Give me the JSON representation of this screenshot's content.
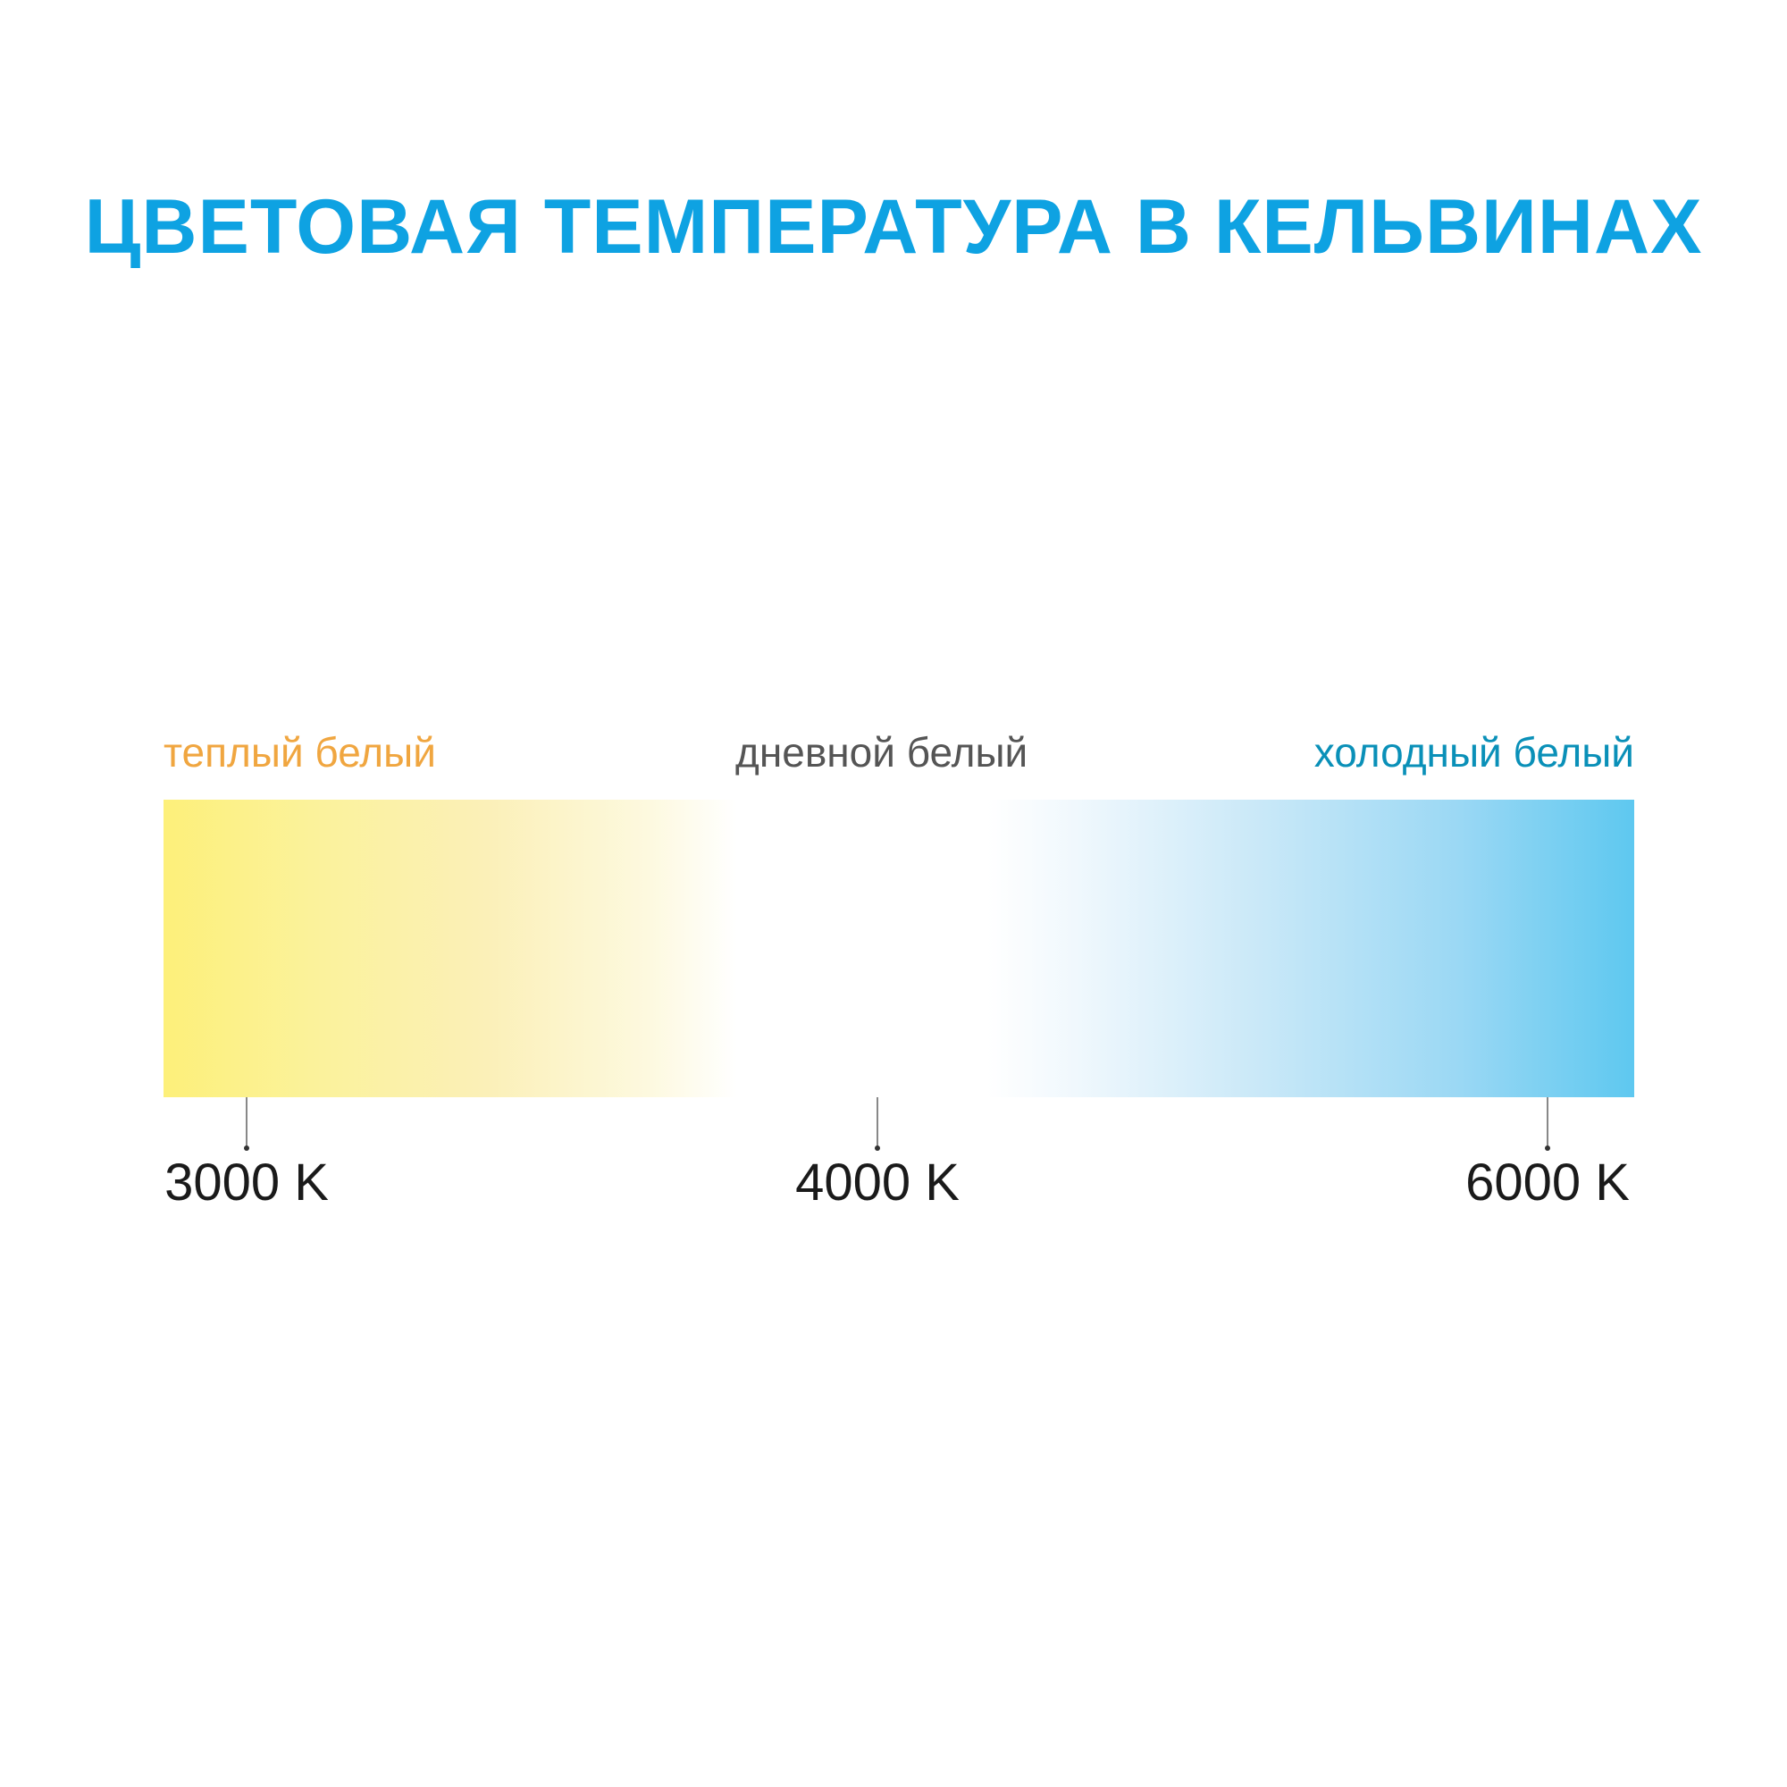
{
  "title": "ЦВЕТОВАЯ ТЕМПЕРАТУРА В КЕЛЬВИНАХ",
  "labels": {
    "warm": "теплый белый",
    "day": "дневной белый",
    "cold": "холодный белый"
  },
  "markers": [
    "3000 K",
    "4000 K",
    "6000 K"
  ],
  "colors": {
    "title": "#0ea2e2",
    "warm_label": "#f0a640",
    "day_label": "#555555",
    "cold_label": "#0a90b8",
    "gradient_warm": "#fdf07a",
    "gradient_cold": "#5ec8f0"
  }
}
